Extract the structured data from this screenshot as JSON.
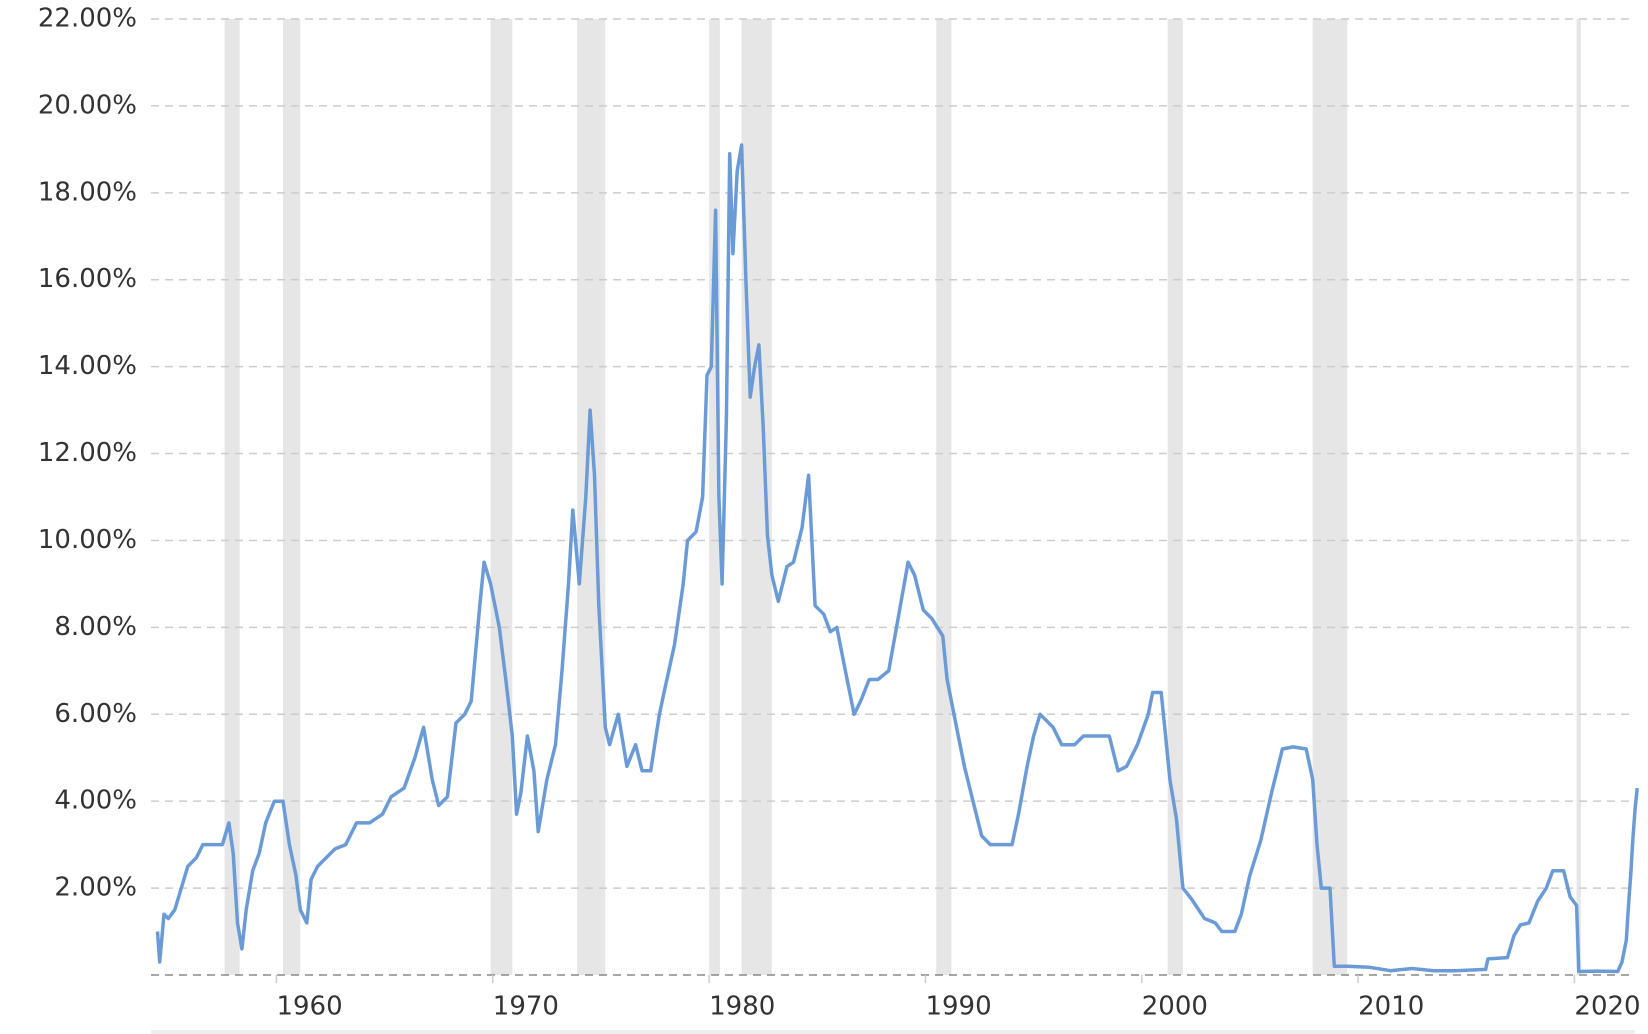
{
  "chart_data": {
    "type": "line",
    "x": [
      1954.5,
      1954.6,
      1954.8,
      1955.0,
      1955.3,
      1955.6,
      1955.9,
      1956.3,
      1956.6,
      1957.0,
      1957.5,
      1957.8,
      1958.0,
      1958.2,
      1958.4,
      1958.6,
      1958.9,
      1959.2,
      1959.5,
      1959.9,
      1960.3,
      1960.6,
      1960.9,
      1961.1,
      1961.4,
      1961.6,
      1961.9,
      1962.3,
      1962.7,
      1963.2,
      1963.7,
      1964.3,
      1964.9,
      1965.3,
      1965.9,
      1966.4,
      1966.8,
      1967.2,
      1967.5,
      1967.9,
      1968.3,
      1968.7,
      1969.0,
      1969.4,
      1969.6,
      1969.9,
      1970.3,
      1970.6,
      1970.9,
      1971.1,
      1971.3,
      1971.6,
      1971.9,
      1972.1,
      1972.5,
      1972.9,
      1973.2,
      1973.5,
      1973.7,
      1974.0,
      1974.3,
      1974.5,
      1974.7,
      1974.9,
      1975.2,
      1975.4,
      1975.8,
      1976.2,
      1976.6,
      1976.9,
      1977.3,
      1977.7,
      1978.0,
      1978.4,
      1978.8,
      1979.0,
      1979.4,
      1979.7,
      1979.9,
      1980.1,
      1980.3,
      1980.45,
      1980.6,
      1980.8,
      1980.95,
      1981.1,
      1981.3,
      1981.5,
      1981.7,
      1981.9,
      1982.1,
      1982.3,
      1982.5,
      1982.7,
      1982.9,
      1983.2,
      1983.6,
      1983.9,
      1984.3,
      1984.6,
      1984.9,
      1985.3,
      1985.6,
      1985.9,
      1986.3,
      1986.7,
      1987.0,
      1987.4,
      1987.8,
      1988.3,
      1988.7,
      1989.2,
      1989.5,
      1989.9,
      1990.3,
      1990.8,
      1991.0,
      1991.4,
      1991.8,
      1992.2,
      1992.6,
      1993.0,
      1993.5,
      1994.0,
      1994.3,
      1994.7,
      1995.0,
      1995.3,
      1995.9,
      1996.3,
      1996.9,
      1997.3,
      1997.9,
      1998.5,
      1998.9,
      1999.3,
      1999.8,
      2000.3,
      2000.5,
      2000.9,
      2001.1,
      2001.3,
      2001.6,
      2001.9,
      2002.3,
      2002.9,
      2003.4,
      2003.7,
      2004.3,
      2004.6,
      2005.0,
      2005.5,
      2006.0,
      2006.5,
      2007.0,
      2007.6,
      2007.9,
      2008.1,
      2008.3,
      2008.7,
      2008.9,
      2009.5,
      2010.5,
      2011.5,
      2012.5,
      2013.5,
      2014.5,
      2015.9,
      2016.0,
      2016.9,
      2017.2,
      2017.5,
      2017.9,
      2018.3,
      2018.7,
      2019.0,
      2019.5,
      2019.8,
      2020.1,
      2020.2,
      2021.0,
      2022.0,
      2022.2,
      2022.4,
      2022.5,
      2022.6,
      2022.7,
      2022.8,
      2022.9
    ],
    "series": [
      {
        "color": "#6b9bd7",
        "values": [
          1.0,
          0.3,
          1.4,
          1.3,
          1.5,
          2.0,
          2.5,
          2.7,
          3.0,
          3.0,
          3.0,
          3.5,
          2.8,
          1.2,
          0.6,
          1.5,
          2.4,
          2.8,
          3.5,
          4.0,
          4.0,
          3.0,
          2.3,
          1.5,
          1.2,
          2.2,
          2.5,
          2.7,
          2.9,
          3.0,
          3.5,
          3.5,
          3.7,
          4.1,
          4.3,
          5.0,
          5.7,
          4.5,
          3.9,
          4.1,
          5.8,
          6.0,
          6.3,
          8.5,
          9.5,
          9.0,
          8.0,
          6.8,
          5.5,
          3.7,
          4.2,
          5.5,
          4.7,
          3.3,
          4.5,
          5.3,
          7.0,
          9.0,
          10.7,
          9.0,
          11.0,
          13.0,
          11.5,
          8.5,
          5.7,
          5.3,
          6.0,
          4.8,
          5.3,
          4.7,
          4.7,
          6.0,
          6.7,
          7.6,
          9.0,
          10.0,
          10.2,
          11.0,
          13.8,
          14.0,
          17.6,
          11.0,
          9.0,
          12.8,
          18.9,
          16.6,
          18.5,
          19.1,
          16.0,
          13.3,
          14.0,
          14.5,
          12.6,
          10.1,
          9.2,
          8.6,
          9.4,
          9.5,
          10.3,
          11.5,
          8.5,
          8.3,
          7.9,
          8.0,
          7.0,
          6.0,
          6.3,
          6.8,
          6.8,
          7.0,
          8.1,
          9.5,
          9.2,
          8.4,
          8.2,
          7.8,
          6.8,
          5.8,
          4.8,
          4.0,
          3.2,
          3.0,
          3.0,
          3.0,
          3.7,
          4.8,
          5.5,
          6.0,
          5.7,
          5.3,
          5.3,
          5.5,
          5.5,
          5.5,
          4.7,
          4.8,
          5.3,
          6.0,
          6.5,
          6.5,
          5.5,
          4.5,
          3.6,
          2.0,
          1.75,
          1.3,
          1.2,
          1.0,
          1.0,
          1.4,
          2.3,
          3.1,
          4.2,
          5.2,
          5.25,
          5.2,
          4.5,
          3.0,
          2.0,
          2.0,
          0.2,
          0.2,
          0.18,
          0.1,
          0.15,
          0.1,
          0.1,
          0.13,
          0.37,
          0.4,
          0.9,
          1.15,
          1.2,
          1.7,
          2.0,
          2.4,
          2.4,
          1.8,
          1.6,
          0.08,
          0.09,
          0.08,
          0.3,
          0.8,
          1.6,
          2.3,
          3.1,
          3.8,
          4.3
        ]
      }
    ],
    "recessions": [
      [
        1957.6,
        1958.3
      ],
      [
        1960.3,
        1961.1
      ],
      [
        1969.9,
        1970.9
      ],
      [
        1973.9,
        1975.2
      ],
      [
        1980.0,
        1980.5
      ],
      [
        1981.5,
        1982.9
      ],
      [
        1990.5,
        1991.2
      ],
      [
        2001.2,
        2001.9
      ],
      [
        2007.9,
        2009.5
      ],
      [
        2020.1,
        2020.3
      ]
    ],
    "recession_color": "#e6e6e6",
    "xlim": [
      1954.2,
      2022.8
    ],
    "xticks": [
      1960,
      1970,
      1980,
      1990,
      2000,
      2010,
      2020
    ],
    "ylim": [
      0,
      22
    ],
    "yticks": [
      0,
      {
        "value": 2,
        "label": "2.00%"
      },
      {
        "value": 4,
        "label": "4.00%"
      },
      {
        "value": 6,
        "label": "6.00%"
      },
      {
        "value": 8,
        "label": "8.00%"
      },
      {
        "value": 10,
        "label": "10.00%"
      },
      {
        "value": 12,
        "label": "12.00%"
      },
      {
        "value": 14,
        "label": "14.00%"
      },
      {
        "value": 16,
        "label": "16.00%"
      },
      {
        "value": 18,
        "label": "18.00%"
      },
      {
        "value": 20,
        "label": "20.00%"
      },
      {
        "value": 22,
        "label": "22.00%"
      }
    ],
    "grid": true
  }
}
